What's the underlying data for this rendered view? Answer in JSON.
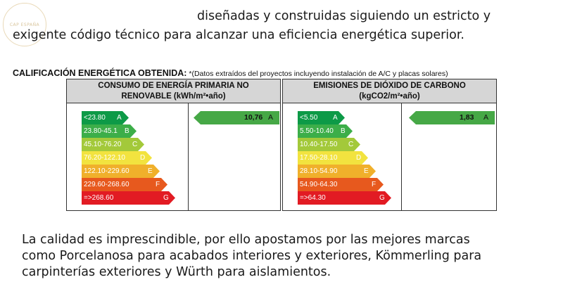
{
  "logo": {
    "text": "CAP ESPAÑA"
  },
  "intro": {
    "line1": "diseñadas y construidas siguiendo un estricto y",
    "line2": "exigente código técnico para alcanzar una eficiencia energética superior."
  },
  "calificacion": {
    "title": "CALIFICACIÓN ENERGÉTICA OBTENIDA:",
    "note": " *(Datos extraídos del proyectos incluyendo instalación de A/C y placas solares)"
  },
  "consumo": {
    "header_line1": "CONSUMO  DE ENERGÍA PRIMARIA NO",
    "header_line2": "RENOVABLE (kWh/m²•año)",
    "scale": [
      {
        "range": "<23.80",
        "letter": "A",
        "color": "#0d9a47"
      },
      {
        "range": "23.80-45.1",
        "letter": "B",
        "color": "#3cae49"
      },
      {
        "range": "45.10-76.20",
        "letter": "C",
        "color": "#a3c93a"
      },
      {
        "range": "76.20-122.10",
        "letter": "D",
        "color": "#f2e33f"
      },
      {
        "range": "122.10-229.60",
        "letter": "E",
        "color": "#f0b02b"
      },
      {
        "range": "229.60-268.60",
        "letter": "F",
        "color": "#e7591e"
      },
      {
        "range": "=>268.60",
        "letter": "G",
        "color": "#e21b23"
      }
    ],
    "result": {
      "value": "10,76",
      "letter": "A",
      "color": "#46a846"
    }
  },
  "emisiones": {
    "header_line1": "EMISIONES DE DIÓXIDO DE CARBONO",
    "header_line2": "(kgCO2/m²•año)",
    "scale": [
      {
        "range": "<5.50",
        "letter": "A",
        "color": "#0d9a47"
      },
      {
        "range": "5.50-10.40",
        "letter": "B",
        "color": "#3cae49"
      },
      {
        "range": "10.40-17.50",
        "letter": "C",
        "color": "#a3c93a"
      },
      {
        "range": "17.50-28.10",
        "letter": "D",
        "color": "#f2e33f"
      },
      {
        "range": "28.10-54.90",
        "letter": "E",
        "color": "#f0b02b"
      },
      {
        "range": "54.90-64.30",
        "letter": "F",
        "color": "#e7591e"
      },
      {
        "range": "=>64.30",
        "letter": "G",
        "color": "#e21b23"
      }
    ],
    "result": {
      "value": "1,83",
      "letter": "A",
      "color": "#46a846"
    }
  },
  "outro": {
    "line1": "La calidad es imprescindible, por ello apostamos por las mejores marcas",
    "line2": "como Porcelanosa para acabados interiores y exteriores, Kömmerling para",
    "line3": "carpinterías exteriores y Würth para aislamientos."
  }
}
